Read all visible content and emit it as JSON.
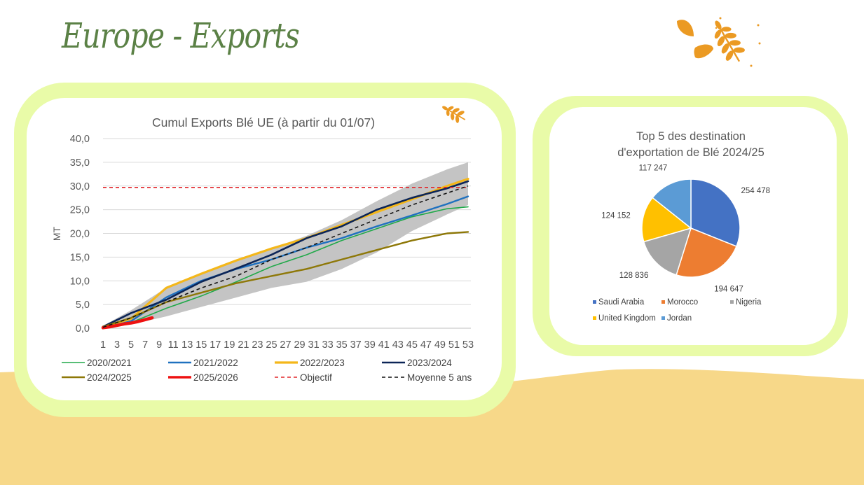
{
  "page": {
    "title": "Europe - Exports"
  },
  "colors": {
    "sand": "#f7d889",
    "card_border": "#e9fba8",
    "title": "#5b8146",
    "wheat": "#eb9a23"
  },
  "chart_data": [
    {
      "type": "line",
      "title": "Cumul Exports Blé UE (à partir du 01/07)",
      "ylabel": "MT",
      "xlabel": "",
      "ylim": [
        0,
        40
      ],
      "yticks": [
        "0,0",
        "5,0",
        "10,0",
        "15,0",
        "20,0",
        "25,0",
        "30,0",
        "35,0",
        "40,0"
      ],
      "xticks": [
        "1",
        "3",
        "5",
        "7",
        "9",
        "11",
        "13",
        "15",
        "17",
        "19",
        "21",
        "23",
        "25",
        "27",
        "29",
        "31",
        "33",
        "35",
        "37",
        "39",
        "41",
        "43",
        "45",
        "47",
        "49",
        "51",
        "53"
      ],
      "xlim": [
        1,
        53
      ],
      "grid": true,
      "legend": "bottom",
      "band": {
        "name": "min-max",
        "color": "#c4c4c4",
        "x": [
          1,
          5,
          10,
          15,
          20,
          25,
          30,
          35,
          40,
          45,
          50,
          53
        ],
        "low": [
          0,
          0.8,
          2.5,
          4.5,
          6.5,
          8.5,
          9.8,
          12.5,
          16,
          20.5,
          24,
          26
        ],
        "high": [
          0.5,
          3.8,
          8.5,
          11.5,
          14.3,
          16.8,
          19.5,
          22.8,
          26.8,
          30.5,
          33.5,
          35
        ]
      },
      "series": [
        {
          "name": "2020/2021",
          "color": "#21a94a",
          "width": 1.6,
          "dash": "",
          "x": [
            1,
            5,
            10,
            15,
            20,
            25,
            30,
            35,
            40,
            45,
            50,
            53
          ],
          "y": [
            0,
            1.2,
            4.2,
            6.8,
            9.8,
            13,
            15.5,
            18.5,
            21,
            23.5,
            25.2,
            25.6
          ]
        },
        {
          "name": "2021/2022",
          "color": "#1f71bf",
          "width": 2.4,
          "dash": "",
          "x": [
            1,
            5,
            10,
            15,
            20,
            25,
            30,
            35,
            40,
            45,
            50,
            53
          ],
          "y": [
            0,
            1.5,
            6.5,
            10,
            12.5,
            14.5,
            17,
            19,
            21.5,
            23.8,
            26.2,
            27.8
          ]
        },
        {
          "name": "2022/2023",
          "color": "#f4b71a",
          "width": 3.2,
          "dash": "",
          "x": [
            1,
            5,
            10,
            15,
            20,
            25,
            30,
            35,
            40,
            45,
            50,
            53
          ],
          "y": [
            0.3,
            2,
            8.5,
            11.5,
            14.3,
            16.8,
            19,
            21.8,
            24.5,
            27.2,
            30,
            31.5
          ]
        },
        {
          "name": "2023/2024",
          "color": "#0c2557",
          "width": 2.6,
          "dash": "",
          "x": [
            1,
            5,
            10,
            15,
            20,
            25,
            30,
            35,
            40,
            45,
            50,
            53
          ],
          "y": [
            0.3,
            3.2,
            6,
            9.8,
            12.6,
            15.5,
            19,
            21.5,
            25,
            27.5,
            29.5,
            31
          ]
        },
        {
          "name": "2024/2025",
          "color": "#8e7808",
          "width": 2.4,
          "dash": "",
          "x": [
            1,
            5,
            10,
            15,
            20,
            25,
            30,
            35,
            40,
            45,
            50,
            53
          ],
          "y": [
            0.3,
            2.2,
            5.5,
            7.5,
            9.5,
            11,
            12.5,
            14.5,
            16.5,
            18.5,
            20,
            20.3
          ]
        },
        {
          "name": "2025/2026",
          "color": "#ee1111",
          "width": 4.5,
          "dash": "",
          "x": [
            1,
            2,
            3,
            4,
            5,
            6,
            7,
            8
          ],
          "y": [
            0.1,
            0.3,
            0.6,
            0.9,
            1.1,
            1.4,
            1.8,
            2.2
          ]
        },
        {
          "name": "Objectif",
          "color": "#e2262a",
          "width": 1.6,
          "dash": "5,4",
          "x": [
            1,
            53
          ],
          "y": [
            29.7,
            29.7
          ]
        },
        {
          "name": "Moyenne 5 ans",
          "color": "#111111",
          "width": 1.6,
          "dash": "5,4",
          "x": [
            1,
            5,
            10,
            15,
            20,
            25,
            30,
            35,
            40,
            45,
            50,
            53
          ],
          "y": [
            0.2,
            2.2,
            5.5,
            8.5,
            11,
            14.5,
            17,
            20,
            23,
            26,
            28.5,
            30
          ]
        }
      ]
    },
    {
      "type": "pie",
      "title": [
        "Top 5 des destination",
        "d'exportation de Blé 2024/25"
      ],
      "legend": "bottom",
      "slices": [
        {
          "name": "Saudi Arabia",
          "value": 254478,
          "label": "254 478",
          "color": "#4472c4"
        },
        {
          "name": "Morocco",
          "value": 194647,
          "label": "194 647",
          "color": "#ed7d31"
        },
        {
          "name": "Nigeria",
          "value": 128836,
          "label": "128 836",
          "color": "#a5a5a5"
        },
        {
          "name": "United Kingdom",
          "value": 124152,
          "label": "124 152",
          "color": "#ffc000"
        },
        {
          "name": "Jordan",
          "value": 117247,
          "label": "117 247",
          "color": "#5b9bd5"
        }
      ]
    }
  ]
}
